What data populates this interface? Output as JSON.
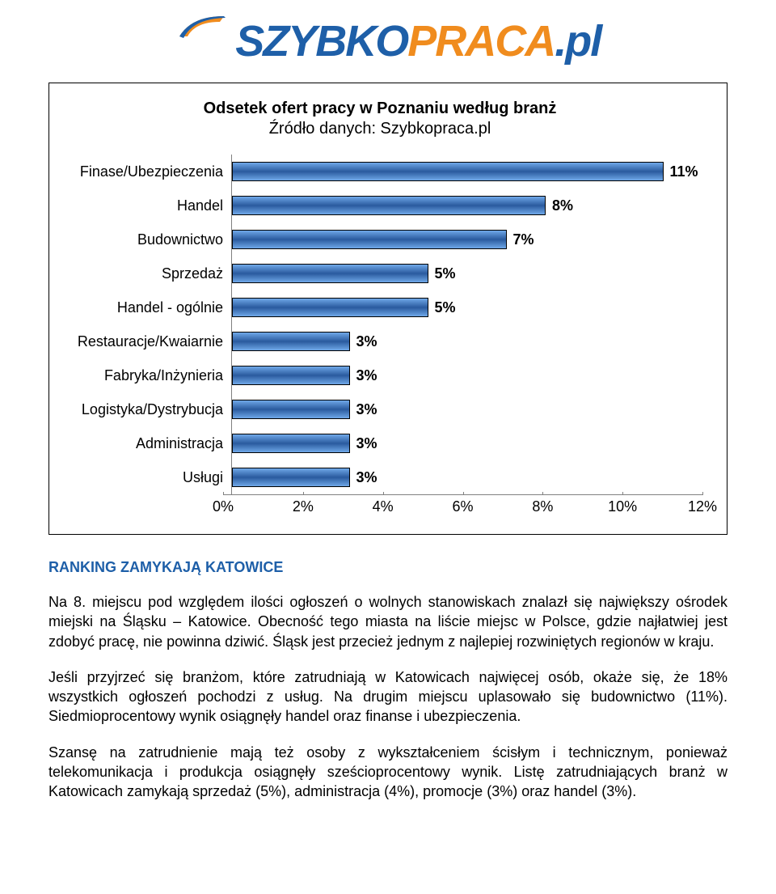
{
  "logo": {
    "part1": "SZYBKO",
    "part2": "PRACA",
    "part3": ".pl"
  },
  "chart": {
    "title": "Odsetek ofert pracy w Poznaniu według branż",
    "subtitle": "Źródło danych: Szybkopraca.pl",
    "type": "bar",
    "bar_gradient": [
      "#6fa8e8",
      "#2a5a9e",
      "#6fa8e8"
    ],
    "bar_border": "#000000",
    "axis_color": "#808080",
    "background": "#ffffff",
    "xmax": 12,
    "ticks": [
      "0%",
      "2%",
      "4%",
      "6%",
      "8%",
      "10%",
      "12%"
    ],
    "tick_positions_pct": [
      0,
      16.67,
      33.33,
      50,
      66.67,
      83.33,
      100
    ],
    "rows": [
      {
        "label": "Finase/Ubezpieczenia",
        "value": 11,
        "text": "11%"
      },
      {
        "label": "Handel",
        "value": 8,
        "text": "8%"
      },
      {
        "label": "Budownictwo",
        "value": 7,
        "text": "7%"
      },
      {
        "label": "Sprzedaż",
        "value": 5,
        "text": "5%"
      },
      {
        "label": "Handel - ogólnie",
        "value": 5,
        "text": "5%"
      },
      {
        "label": "Restauracje/Kwaiarnie",
        "value": 3,
        "text": "3%"
      },
      {
        "label": "Fabryka/Inżynieria",
        "value": 3,
        "text": "3%"
      },
      {
        "label": "Logistyka/Dystrybucja",
        "value": 3,
        "text": "3%"
      },
      {
        "label": "Administracja",
        "value": 3,
        "text": "3%"
      },
      {
        "label": "Usługi",
        "value": 3,
        "text": "3%"
      }
    ],
    "label_fontsize": 18,
    "value_fontsize": 18,
    "title_fontsize": 20
  },
  "heading": "RANKING ZAMYKAJĄ KATOWICE",
  "paragraphs": [
    "Na 8. miejscu pod względem ilości ogłoszeń o wolnych stanowiskach znalazł się największy ośrodek miejski na Śląsku – Katowice. Obecność tego miasta na liście miejsc w Polsce, gdzie najłatwiej jest zdobyć pracę, nie powinna dziwić. Śląsk jest przecież jednym z najlepiej rozwiniętych regionów w kraju.",
    "Jeśli przyjrzeć się branżom, które zatrudniają w Katowicach najwięcej osób, okaże się, że 18% wszystkich ogłoszeń pochodzi z usług. Na drugim miejscu uplasowało się budownictwo (11%). Siedmioprocentowy wynik osiągnęły handel oraz finanse i ubezpieczenia.",
    "Szansę na zatrudnienie mają też osoby z wykształceniem ścisłym i technicznym, ponieważ telekomunikacja i produkcja osiągnęły sześcioprocentowy wynik. Listę zatrudniających branż w Katowicach zamykają sprzedaż (5%), administracja (4%), promocje (3%) oraz handel (3%)."
  ]
}
